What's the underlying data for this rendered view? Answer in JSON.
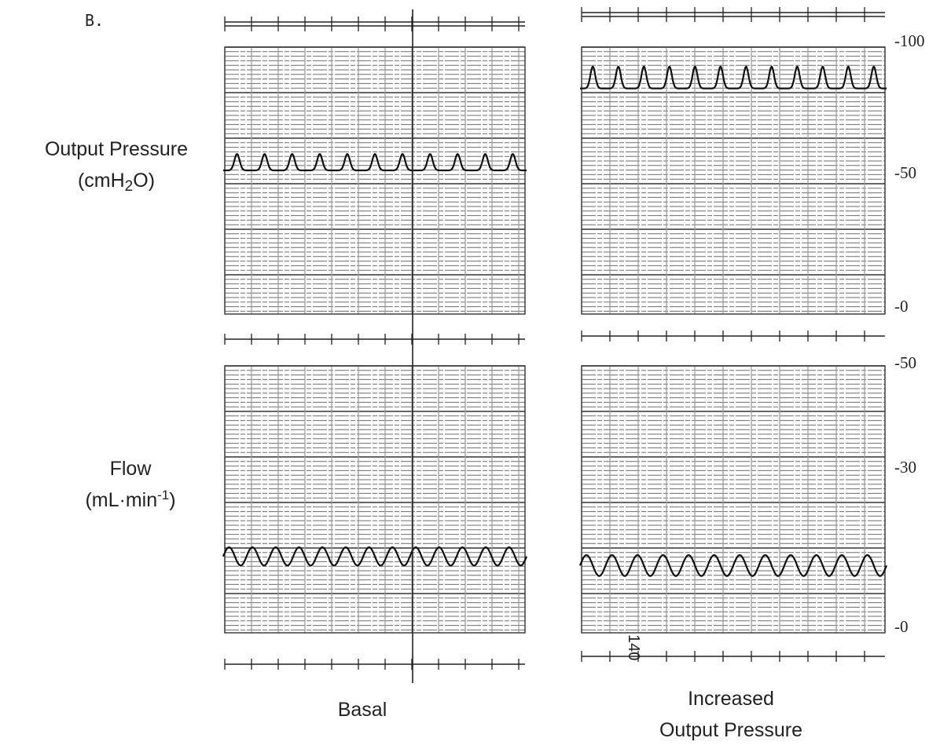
{
  "figure": {
    "panel_letter": "B.",
    "row_labels": {
      "pressure_line1": "Output Pressure",
      "pressure_line2_pre": "(cmH",
      "pressure_line2_sub": "2",
      "pressure_line2_post": "O)",
      "flow_line1": "Flow",
      "flow_line2_pre": "(mL·min",
      "flow_line2_sup": "-1",
      "flow_line2_post": ")"
    },
    "conditions": {
      "basal": "Basal",
      "increased_line1": "Increased",
      "increased_line2": "Output Pressure"
    },
    "pressure_scale": [
      "-100",
      "-50",
      "-0"
    ],
    "flow_scale": [
      "-50",
      "-30",
      "-0"
    ],
    "chart_marker": "140"
  },
  "chart_data": [
    {
      "type": "line",
      "title": "",
      "panel": "Basal",
      "ylabel": "Output Pressure (cmH2O)",
      "ylim": [
        0,
        100
      ],
      "grid": true,
      "pulse_shape": "peaked",
      "cycles": 11,
      "baseline": 52,
      "peak": 58
    },
    {
      "type": "line",
      "title": "",
      "panel": "Increased Output Pressure",
      "ylabel": "Output Pressure (cmH2O)",
      "ylim": [
        0,
        100
      ],
      "grid": true,
      "pulse_shape": "peaked",
      "cycles": 12,
      "baseline": 82,
      "peak": 90
    },
    {
      "type": "line",
      "title": "",
      "panel": "Basal",
      "ylabel": "Flow (mL·min-1)",
      "ylim": [
        0,
        50
      ],
      "grid": true,
      "pulse_shape": "sinusoid",
      "cycles": 13,
      "min": 12,
      "max": 15.5
    },
    {
      "type": "line",
      "title": "",
      "panel": "Increased Output Pressure",
      "ylabel": "Flow (mL·min-1)",
      "ylim": [
        0,
        50
      ],
      "grid": true,
      "pulse_shape": "sinusoid",
      "cycles": 12,
      "min": 10,
      "max": 14
    }
  ]
}
